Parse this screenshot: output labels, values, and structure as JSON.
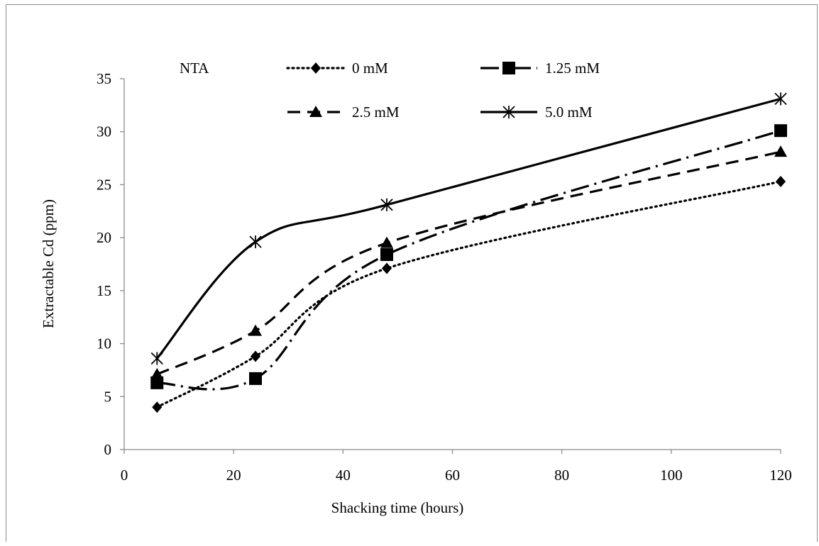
{
  "chart_data": {
    "type": "line",
    "xlabel": "Shacking time (hours)",
    "ylabel": "Extractable Cd (ppm)",
    "xlim": [
      0,
      120
    ],
    "ylim": [
      0,
      35
    ],
    "x_ticks": [
      0,
      20,
      40,
      60,
      80,
      100,
      120
    ],
    "y_ticks": [
      0,
      5,
      10,
      15,
      20,
      25,
      30,
      35
    ],
    "grid": false,
    "legend_title": "NTA",
    "legend_position": "top",
    "x": [
      6,
      24,
      48,
      120
    ],
    "series": [
      {
        "name": "0 mM",
        "values": [
          4.0,
          8.8,
          17.1,
          25.3
        ],
        "marker": "diamond",
        "dash": "dotted",
        "color": "#000000"
      },
      {
        "name": "1.25 mM",
        "values": [
          6.3,
          6.7,
          18.4,
          30.1
        ],
        "marker": "square",
        "dash": "long-dash-dot",
        "color": "#000000"
      },
      {
        "name": "2.5 mM",
        "values": [
          7.1,
          11.2,
          19.5,
          28.1
        ],
        "marker": "triangle",
        "dash": "dashed",
        "color": "#000000"
      },
      {
        "name": "5.0 mM",
        "values": [
          8.6,
          19.6,
          23.1,
          33.1
        ],
        "marker": "star",
        "dash": "solid",
        "color": "#000000"
      }
    ]
  }
}
